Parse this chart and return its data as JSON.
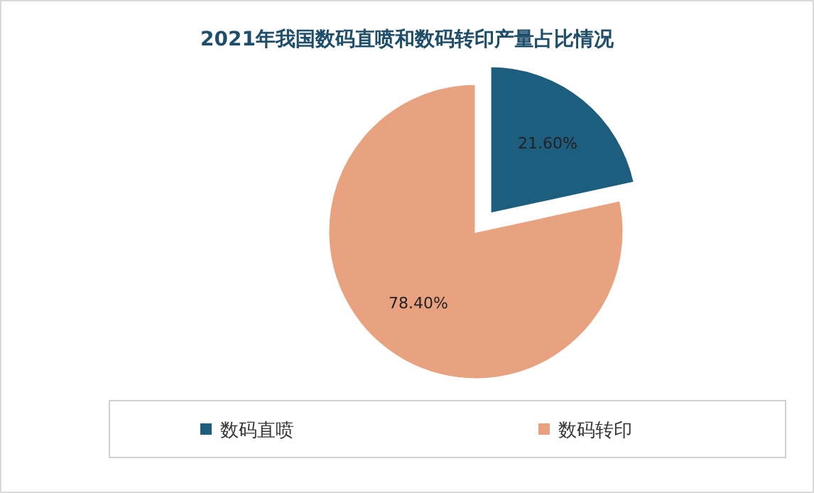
{
  "chart_data": {
    "type": "pie",
    "title": "2021年我国数码直喷和数码转印产量占比情况",
    "categories": [
      "数码直喷",
      "数码转印"
    ],
    "values": [
      21.6,
      78.4
    ],
    "colors": [
      "#1d5e7e",
      "#e9a27f"
    ],
    "value_labels": [
      "21.60%",
      "78.40%"
    ],
    "legend": "bottom"
  }
}
